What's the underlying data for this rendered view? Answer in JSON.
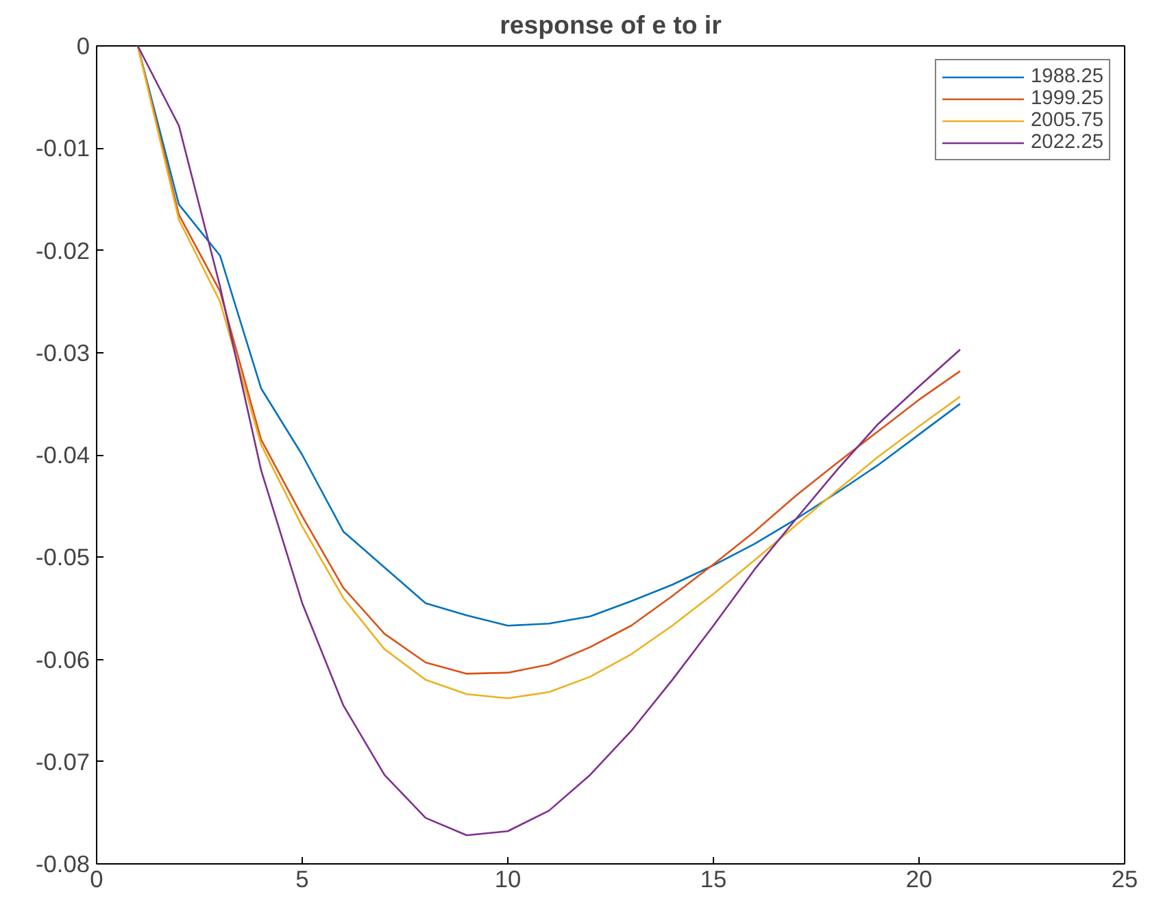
{
  "chart_data": {
    "type": "line",
    "title": "response of e to ir",
    "x": [
      1,
      2,
      3,
      4,
      5,
      6,
      7,
      8,
      9,
      10,
      11,
      12,
      13,
      14,
      15,
      16,
      17,
      18,
      19,
      20,
      21
    ],
    "xlim": [
      0,
      25
    ],
    "xticks": [
      0,
      5,
      10,
      15,
      20,
      25
    ],
    "ylim": [
      -0.08,
      0
    ],
    "yticks": [
      -0.08,
      -0.07,
      -0.06,
      -0.05,
      -0.04,
      -0.03,
      -0.02,
      -0.01,
      0
    ],
    "grid": false,
    "legend": "top right",
    "marker": "none",
    "line_style": "solid",
    "series": [
      {
        "name": "1988.25",
        "color": "#0072bd",
        "values": [
          0,
          -0.0155,
          -0.0205,
          -0.0335,
          -0.04,
          -0.0475,
          -0.051,
          -0.0545,
          -0.0557,
          -0.0567,
          -0.0565,
          -0.0558,
          -0.0543,
          -0.0527,
          -0.0508,
          -0.0487,
          -0.0463,
          -0.0437,
          -0.041,
          -0.038,
          -0.035
        ]
      },
      {
        "name": "1999.25",
        "color": "#d95319",
        "values": [
          0,
          -0.0165,
          -0.024,
          -0.0385,
          -0.046,
          -0.053,
          -0.0575,
          -0.0603,
          -0.0614,
          -0.0613,
          -0.0605,
          -0.0588,
          -0.0567,
          -0.0538,
          -0.0507,
          -0.0475,
          -0.044,
          -0.0408,
          -0.0377,
          -0.0346,
          -0.0318
        ]
      },
      {
        "name": "2005.75",
        "color": "#edb120",
        "values": [
          0,
          -0.017,
          -0.025,
          -0.039,
          -0.047,
          -0.054,
          -0.059,
          -0.062,
          -0.0634,
          -0.0638,
          -0.0632,
          -0.0617,
          -0.0595,
          -0.0567,
          -0.0536,
          -0.0503,
          -0.0469,
          -0.0435,
          -0.0402,
          -0.0372,
          -0.0343
        ]
      },
      {
        "name": "2022.25",
        "color": "#7e2f8e",
        "values": [
          0,
          -0.0078,
          -0.0235,
          -0.0415,
          -0.0545,
          -0.0645,
          -0.0713,
          -0.0755,
          -0.0772,
          -0.0768,
          -0.0748,
          -0.0713,
          -0.067,
          -0.062,
          -0.0567,
          -0.0512,
          -0.0463,
          -0.0415,
          -0.037,
          -0.0333,
          -0.0297
        ]
      }
    ]
  }
}
